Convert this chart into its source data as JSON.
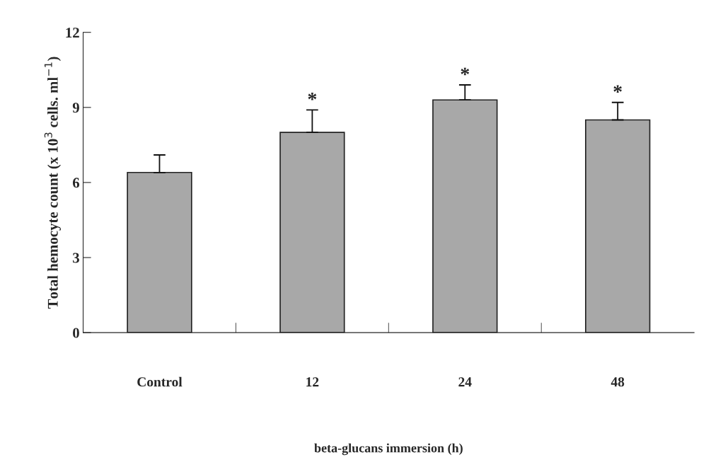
{
  "chart_data": {
    "type": "bar",
    "xlabel": "beta-glucans immersion (h)",
    "ylabel": "Total hemocyte count (x 10$^{3}$ cells. ml$^{−1}$)",
    "categories": [
      "Control",
      "12",
      "24",
      "48"
    ],
    "values": [
      6.4,
      8.0,
      9.3,
      8.5
    ],
    "errors": [
      0.7,
      0.9,
      0.6,
      0.7
    ],
    "color": "#a8a8a8",
    "ylim": [
      0,
      12
    ],
    "yticks": [
      0,
      3,
      6,
      9,
      12
    ],
    "grid": false,
    "annotations": [
      {
        "text": "*",
        "x": "12",
        "y": 8.9
      },
      {
        "text": "*",
        "x": "24",
        "y": 9.9
      },
      {
        "text": "*",
        "x": "48",
        "y": 9.2
      }
    ]
  }
}
